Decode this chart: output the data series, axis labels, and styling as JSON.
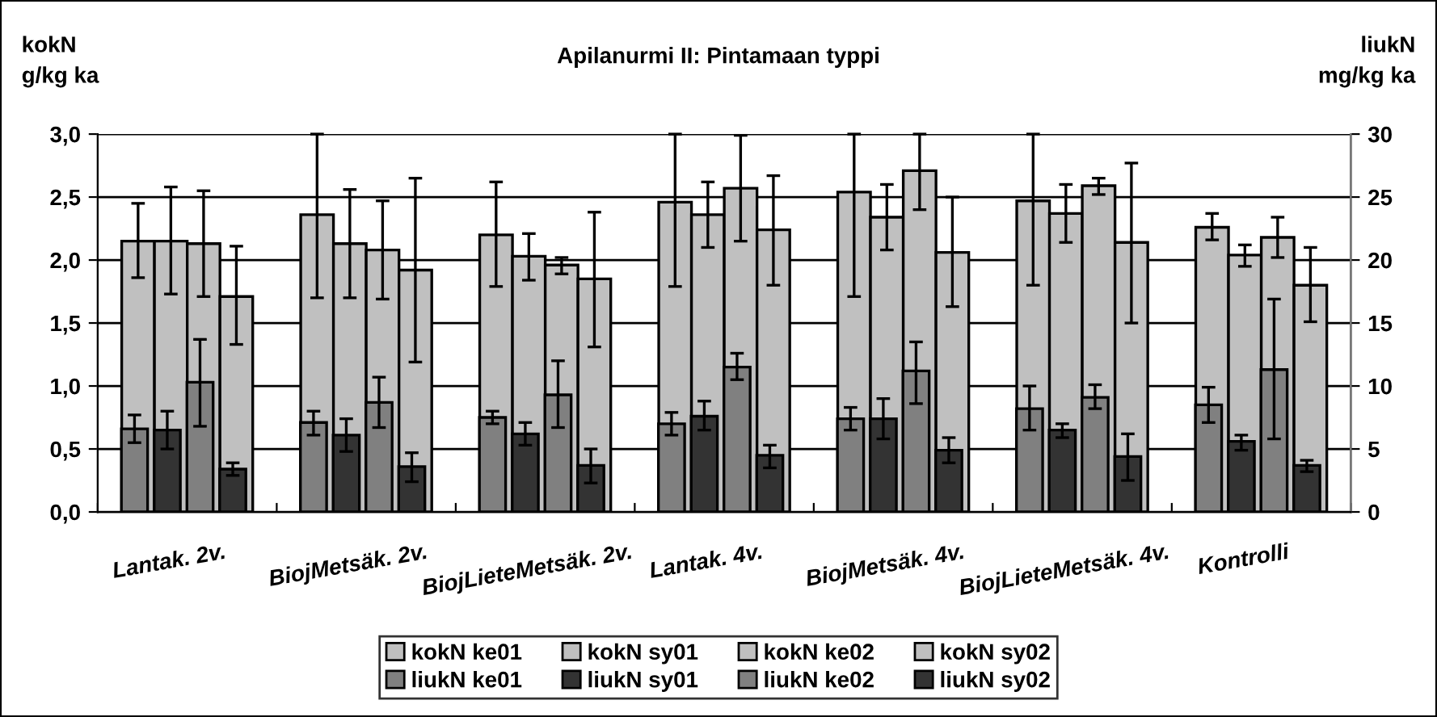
{
  "chart_data": {
    "type": "bar",
    "title": "Apilanurmi II: Pintamaan typpi",
    "ylabel": "kokN\ng/kg ka",
    "y2label": "liukN\nmg/kg ka",
    "categories": [
      "Lantak. 2v.",
      "BiojMetsäk. 2v.",
      "BiojLieteMetsäk. 2v.",
      "Lantak. 4v.",
      "BiojMetsäk. 4v.",
      "BiojLieteMetsäk. 4v.",
      "Kontrolli"
    ],
    "series": [
      {
        "name": "kokN ke01",
        "color": "#c0c0c0",
        "values": [
          2.15,
          2.36,
          2.2,
          2.46,
          2.54,
          2.47,
          2.26
        ],
        "errors": [
          [
            1.86,
            2.45
          ],
          [
            1.7,
            3.0
          ],
          [
            1.79,
            2.62
          ],
          [
            1.79,
            3.0
          ],
          [
            1.71,
            3.0
          ],
          [
            1.8,
            3.0
          ],
          [
            2.16,
            2.37
          ]
        ]
      },
      {
        "name": "kokN sy01",
        "color": "#c0c0c0",
        "values": [
          2.15,
          2.13,
          2.03,
          2.36,
          2.34,
          2.37,
          2.04
        ],
        "errors": [
          [
            1.73,
            2.58
          ],
          [
            1.7,
            2.56
          ],
          [
            1.84,
            2.21
          ],
          [
            2.1,
            2.62
          ],
          [
            2.08,
            2.6
          ],
          [
            2.14,
            2.6
          ],
          [
            1.95,
            2.12
          ]
        ]
      },
      {
        "name": "kokN ke02",
        "color": "#c0c0c0",
        "values": [
          2.13,
          2.08,
          1.96,
          2.57,
          2.71,
          2.59,
          2.18
        ],
        "errors": [
          [
            1.71,
            2.55
          ],
          [
            1.69,
            2.47
          ],
          [
            1.89,
            2.02
          ],
          [
            2.15,
            2.99
          ],
          [
            2.4,
            3.0
          ],
          [
            2.52,
            2.65
          ],
          [
            2.02,
            2.34
          ]
        ]
      },
      {
        "name": "kokN sy02",
        "color": "#c0c0c0",
        "values": [
          1.71,
          1.92,
          1.85,
          2.24,
          2.06,
          2.14,
          1.8
        ],
        "errors": [
          [
            1.33,
            2.11
          ],
          [
            1.19,
            2.65
          ],
          [
            1.31,
            2.38
          ],
          [
            1.8,
            2.67
          ],
          [
            1.63,
            2.5
          ],
          [
            1.5,
            2.77
          ],
          [
            1.51,
            2.1
          ]
        ]
      },
      {
        "name": "liukN ke01",
        "color": "#808080",
        "axis": "y2",
        "values": [
          6.6,
          7.1,
          7.5,
          7.0,
          7.4,
          8.2,
          8.5
        ],
        "errors": [
          [
            5.5,
            7.7
          ],
          [
            6.1,
            8.0
          ],
          [
            7.0,
            8.0
          ],
          [
            6.1,
            7.9
          ],
          [
            6.5,
            8.3
          ],
          [
            6.5,
            10.0
          ],
          [
            7.1,
            9.9
          ]
        ]
      },
      {
        "name": "liukN sy01",
        "color": "#333333",
        "axis": "y2",
        "values": [
          6.5,
          6.1,
          6.2,
          7.6,
          7.4,
          6.5,
          5.6
        ],
        "errors": [
          [
            5.0,
            8.0
          ],
          [
            4.8,
            7.4
          ],
          [
            5.3,
            7.1
          ],
          [
            6.5,
            8.8
          ],
          [
            5.8,
            9.0
          ],
          [
            5.9,
            7.0
          ],
          [
            4.9,
            6.1
          ]
        ]
      },
      {
        "name": "liukN ke02",
        "color": "#808080",
        "axis": "y2",
        "values": [
          10.3,
          8.7,
          9.3,
          11.5,
          11.2,
          9.1,
          11.3
        ],
        "errors": [
          [
            6.8,
            13.7
          ],
          [
            6.7,
            10.7
          ],
          [
            6.7,
            12.0
          ],
          [
            10.5,
            12.6
          ],
          [
            8.6,
            13.5
          ],
          [
            8.2,
            10.1
          ],
          [
            5.8,
            16.9
          ]
        ]
      },
      {
        "name": "liukN sy02",
        "color": "#333333",
        "axis": "y2",
        "values": [
          3.4,
          3.6,
          3.7,
          4.5,
          4.9,
          4.4,
          3.7
        ],
        "errors": [
          [
            2.9,
            3.9
          ],
          [
            2.4,
            4.7
          ],
          [
            2.3,
            5.0
          ],
          [
            3.5,
            5.3
          ],
          [
            3.9,
            5.9
          ],
          [
            2.5,
            6.2
          ],
          [
            3.2,
            4.1
          ]
        ]
      }
    ],
    "ylim": [
      0,
      3.0
    ],
    "yticks": [
      {
        "value": 0,
        "label": "0,0"
      },
      {
        "value": 0.5,
        "label": "0,5"
      },
      {
        "value": 1.0,
        "label": "1,0"
      },
      {
        "value": 1.5,
        "label": "1,5"
      },
      {
        "value": 2.0,
        "label": "2,0"
      },
      {
        "value": 2.5,
        "label": "2,5"
      },
      {
        "value": 3.0,
        "label": "3,0"
      }
    ],
    "y2lim": [
      0,
      30
    ],
    "y2ticks": [
      0,
      5,
      10,
      15,
      20,
      25,
      30
    ],
    "grid": "y",
    "legend": "bottom"
  }
}
